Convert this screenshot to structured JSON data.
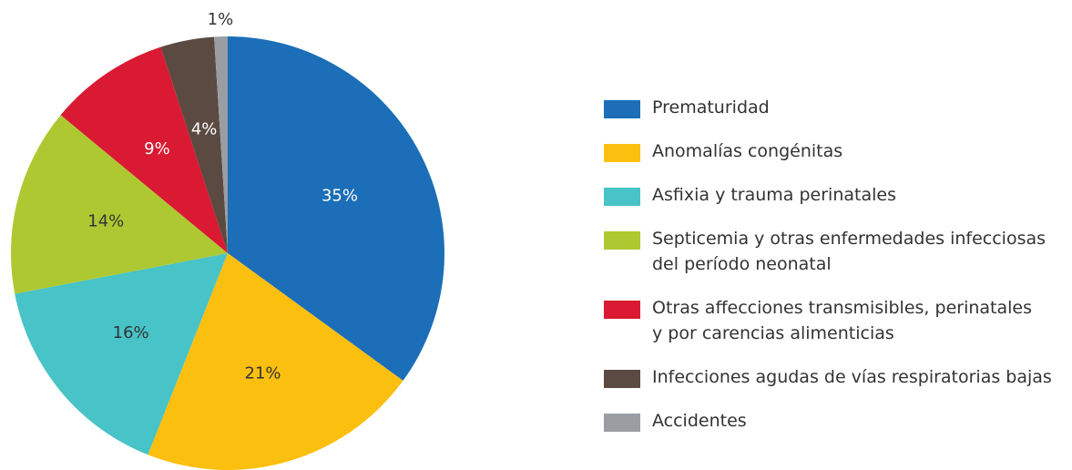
{
  "chart_data": {
    "type": "pie",
    "categories": [
      "Prematuridad",
      "Anomalías congénitas",
      "Asfixia y trauma perinatales",
      "Septicemia y otras enfermedades infecciosas\ndel período neonatal",
      "Otras affecciones transmisibles, perinatales\ny por carencias alimenticias",
      "Infecciones agudas de vías respiratorias bajas",
      "Accidentes"
    ],
    "values": [
      35,
      21,
      16,
      14,
      9,
      4,
      1
    ],
    "value_labels": [
      "35%",
      "21%",
      "16%",
      "14%",
      "9%",
      "4%",
      "1%"
    ],
    "colors": [
      "#1b6eb7",
      "#fbbf0f",
      "#48c3c7",
      "#aec832",
      "#d91a32",
      "#5a4a42",
      "#9a9ea3"
    ],
    "legend": "right"
  }
}
